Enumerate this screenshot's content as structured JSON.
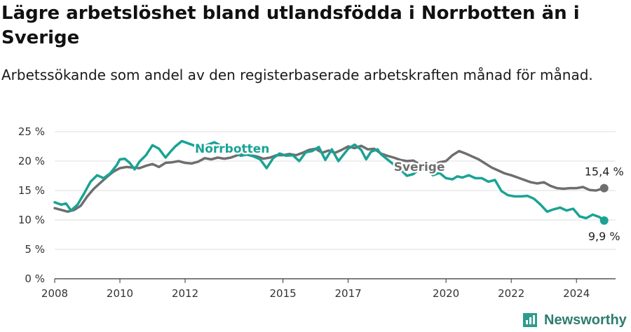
{
  "header": {
    "title": "Lägre arbetslöshet bland utlandsfödda i Norrbotten än i Sverige",
    "subtitle": "Arbetssökande som andel av den registerbaserade arbetskraften månad för månad."
  },
  "brand": {
    "name": "Newsworthy",
    "icon": "newsworthy-logo-icon",
    "color": "#2e9c8d"
  },
  "chart_data": {
    "type": "line",
    "xlim": [
      2008,
      2025.2
    ],
    "ylim": [
      0,
      25
    ],
    "xticks": [
      2008,
      2010,
      2012,
      2015,
      2017,
      2020,
      2022,
      2024
    ],
    "xtick_labels": [
      "2008",
      "2010",
      "2012",
      "2015",
      "2017",
      "2020",
      "2022",
      "2024"
    ],
    "yticks": [
      0,
      5,
      10,
      15,
      20,
      25
    ],
    "ytick_labels": [
      "0 %",
      "5 %",
      "10 %",
      "15 %",
      "20 %",
      "25 %"
    ],
    "grid": true,
    "series": [
      {
        "name": "Norrbotten",
        "color": "#1aa394",
        "x": [
          2008.0,
          2008.2,
          2008.35,
          2008.5,
          2008.7,
          2008.9,
          2009.1,
          2009.3,
          2009.5,
          2009.7,
          2009.9,
          2010.0,
          2010.15,
          2010.3,
          2010.45,
          2010.6,
          2010.8,
          2011.0,
          2011.2,
          2011.4,
          2011.55,
          2011.7,
          2011.9,
          2012.1,
          2012.3,
          2012.5,
          2012.7,
          2012.9,
          2013.1,
          2013.3,
          2013.5,
          2013.7,
          2013.9,
          2014.1,
          2014.3,
          2014.5,
          2014.7,
          2014.9,
          2015.1,
          2015.3,
          2015.5,
          2015.7,
          2015.9,
          2016.1,
          2016.3,
          2016.5,
          2016.7,
          2016.9,
          2017.0,
          2017.2,
          2017.4,
          2017.55,
          2017.7,
          2017.9,
          2018.0,
          2018.2,
          2018.4,
          2018.6,
          2018.8,
          2019.0,
          2019.2,
          2019.4,
          2019.6,
          2019.8,
          2020.0,
          2020.2,
          2020.35,
          2020.5,
          2020.7,
          2020.9,
          2021.1,
          2021.3,
          2021.5,
          2021.7,
          2021.9,
          2022.1,
          2022.3,
          2022.5,
          2022.7,
          2022.9,
          2023.1,
          2023.3,
          2023.5,
          2023.7,
          2023.9,
          2024.1,
          2024.3,
          2024.5,
          2024.7,
          2024.85
        ],
        "y": [
          13.0,
          12.6,
          12.8,
          11.6,
          12.6,
          14.5,
          16.5,
          17.6,
          17.1,
          17.9,
          19.3,
          20.3,
          20.4,
          19.7,
          18.6,
          19.9,
          21.0,
          22.7,
          22.1,
          20.6,
          21.6,
          22.5,
          23.4,
          23.0,
          22.6,
          22.0,
          22.8,
          23.2,
          22.6,
          21.4,
          22.0,
          20.9,
          21.1,
          20.8,
          20.3,
          18.8,
          20.5,
          21.3,
          20.9,
          21.0,
          20.0,
          21.5,
          21.7,
          22.4,
          20.2,
          22.0,
          20.0,
          21.4,
          22.1,
          22.8,
          21.9,
          20.3,
          21.6,
          22.0,
          21.2,
          20.3,
          19.4,
          18.6,
          17.5,
          17.8,
          18.7,
          18.5,
          17.6,
          18.0,
          17.1,
          16.9,
          17.4,
          17.2,
          17.6,
          17.1,
          17.1,
          16.5,
          16.8,
          14.9,
          14.2,
          14.0,
          14.0,
          14.1,
          13.6,
          12.6,
          11.4,
          11.8,
          12.1,
          11.6,
          11.9,
          10.6,
          10.3,
          10.9,
          10.5,
          9.9
        ]
      },
      {
        "name": "Sverige",
        "color": "#6e6e6e",
        "x": [
          2008.0,
          2008.2,
          2008.4,
          2008.6,
          2008.8,
          2009.0,
          2009.2,
          2009.4,
          2009.6,
          2009.8,
          2010.0,
          2010.2,
          2010.4,
          2010.6,
          2010.8,
          2011.0,
          2011.2,
          2011.4,
          2011.6,
          2011.8,
          2012.0,
          2012.2,
          2012.4,
          2012.6,
          2012.8,
          2013.0,
          2013.2,
          2013.4,
          2013.6,
          2013.8,
          2014.0,
          2014.2,
          2014.4,
          2014.6,
          2014.8,
          2015.0,
          2015.2,
          2015.4,
          2015.6,
          2015.8,
          2016.0,
          2016.2,
          2016.4,
          2016.6,
          2016.8,
          2017.0,
          2017.2,
          2017.4,
          2017.6,
          2017.8,
          2018.0,
          2018.2,
          2018.4,
          2018.6,
          2018.8,
          2019.0,
          2019.2,
          2019.4,
          2019.6,
          2019.8,
          2020.0,
          2020.2,
          2020.4,
          2020.6,
          2020.8,
          2021.0,
          2021.2,
          2021.4,
          2021.6,
          2021.8,
          2022.0,
          2022.2,
          2022.4,
          2022.6,
          2022.8,
          2023.0,
          2023.2,
          2023.4,
          2023.6,
          2023.8,
          2024.0,
          2024.2,
          2024.4,
          2024.6,
          2024.85
        ],
        "y": [
          12.0,
          11.7,
          11.4,
          11.7,
          12.4,
          14.0,
          15.3,
          16.3,
          17.3,
          18.2,
          18.8,
          19.0,
          18.9,
          18.8,
          19.2,
          19.5,
          19.0,
          19.7,
          19.8,
          20.0,
          19.7,
          19.6,
          19.9,
          20.5,
          20.3,
          20.6,
          20.4,
          20.6,
          21.0,
          21.2,
          21.0,
          20.8,
          20.4,
          20.6,
          21.0,
          21.0,
          21.2,
          21.0,
          21.4,
          21.9,
          22.1,
          21.4,
          21.8,
          21.4,
          21.9,
          22.5,
          22.2,
          22.6,
          22.0,
          22.1,
          21.3,
          20.9,
          20.6,
          20.2,
          20.0,
          20.1,
          19.4,
          18.6,
          19.2,
          19.8,
          20.0,
          21.0,
          21.7,
          21.3,
          20.8,
          20.3,
          19.6,
          18.9,
          18.4,
          17.9,
          17.6,
          17.2,
          16.8,
          16.4,
          16.2,
          16.4,
          15.8,
          15.4,
          15.3,
          15.4,
          15.4,
          15.6,
          15.1,
          15.0,
          15.4
        ]
      }
    ],
    "annotations": [
      {
        "series": "Norrbotten",
        "text": "Norrbotten"
      },
      {
        "series": "Sverige",
        "text": "Sverige"
      },
      {
        "series": "Sverige",
        "text": "15,4 %"
      },
      {
        "series": "Norrbotten",
        "text": "9,9 %"
      }
    ]
  }
}
